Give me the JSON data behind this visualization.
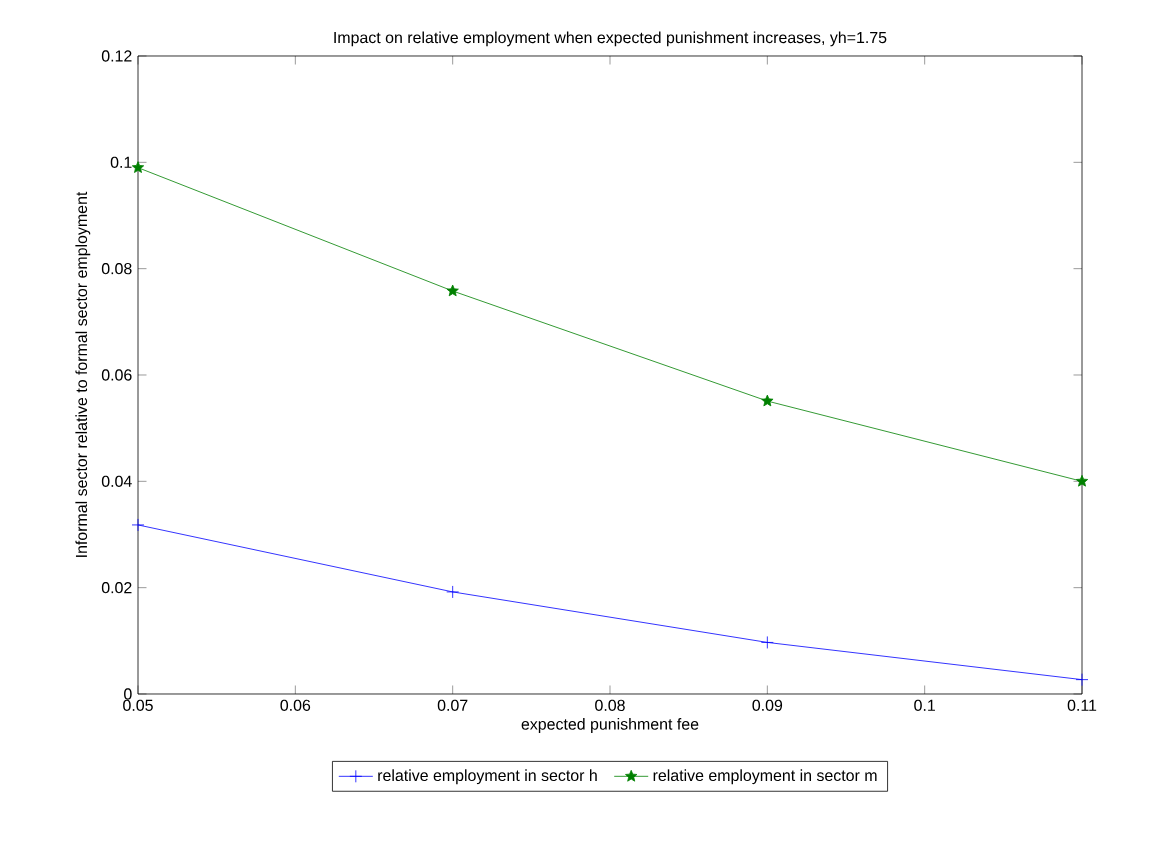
{
  "chart_data": {
    "type": "line",
    "title": "Impact on relative employment when expected punishment increases, yh=1.75",
    "xlabel": "expected punishment fee",
    "ylabel": "Informal sector relative to formal sector employment",
    "x": [
      0.05,
      0.07,
      0.09,
      0.11
    ],
    "series": [
      {
        "name": "relative employment in sector h",
        "color": "#0000ff",
        "marker": "cross",
        "values": [
          0.0318,
          0.0192,
          0.0097,
          0.0027
        ]
      },
      {
        "name": "relative employment in sector m",
        "color": "#008000",
        "marker": "star",
        "values": [
          0.099,
          0.0758,
          0.0551,
          0.04
        ]
      }
    ],
    "xlim": [
      0.05,
      0.11
    ],
    "ylim": [
      0,
      0.12
    ],
    "xticks": [
      0.05,
      0.06,
      0.07,
      0.08,
      0.09,
      0.1,
      0.11
    ],
    "yticks": [
      0,
      0.02,
      0.04,
      0.06,
      0.08,
      0.1,
      0.12
    ],
    "grid": false,
    "legend": "bottom",
    "line_style": "solid"
  }
}
